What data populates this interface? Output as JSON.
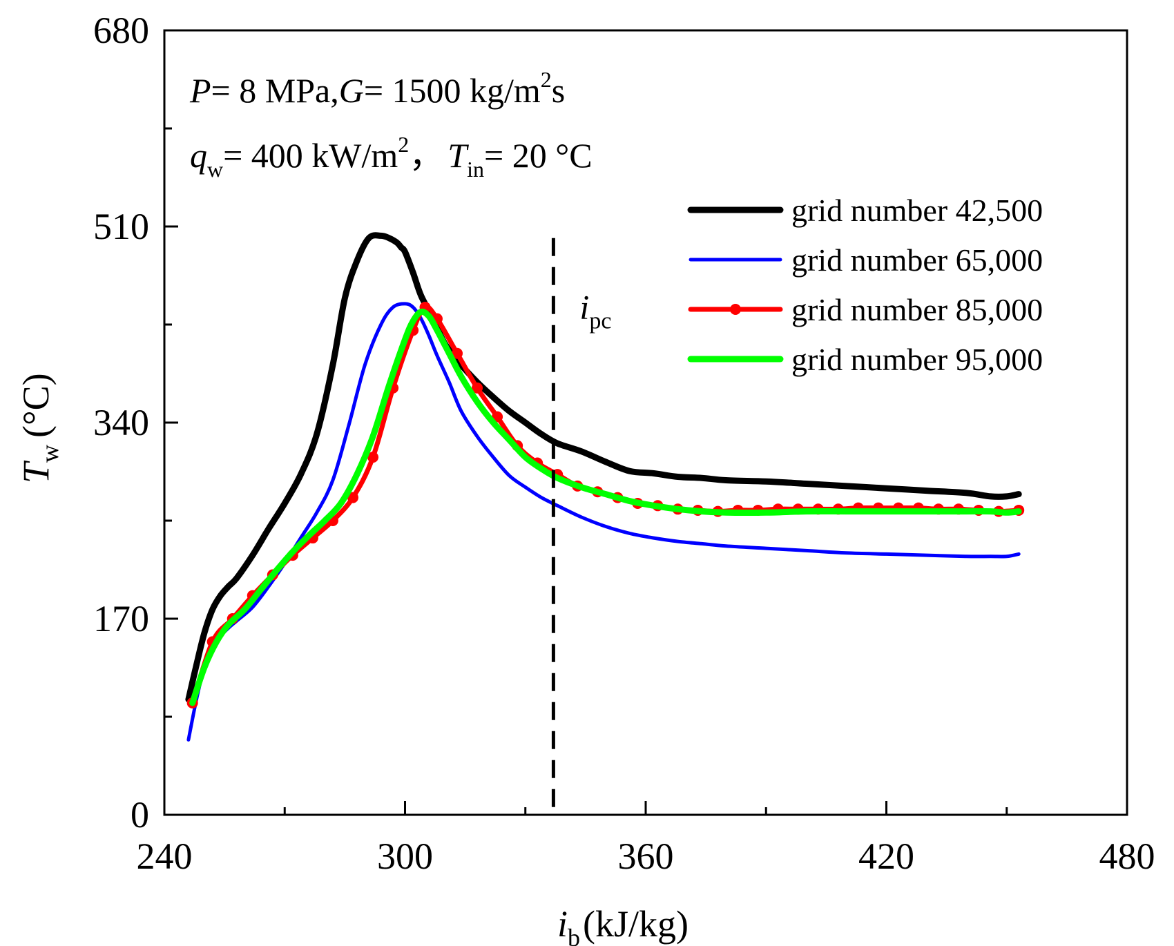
{
  "chart_data": {
    "type": "line",
    "xlabel": {
      "symbol": "i",
      "sub": "b",
      "unit": "(kJ/kg)"
    },
    "ylabel": {
      "symbol": "T",
      "sub": "w",
      "unit": "(°C)"
    },
    "xlim": [
      240,
      480
    ],
    "ylim": [
      0,
      680
    ],
    "xticks": [
      "240",
      "300",
      "360",
      "420",
      "480"
    ],
    "yticks": [
      "0",
      "170",
      "340",
      "510",
      "680"
    ],
    "xtick_values": [
      240,
      300,
      360,
      420,
      480
    ],
    "ytick_values": [
      0,
      170,
      340,
      510,
      680
    ],
    "grid": false,
    "annotations": {
      "line1": {
        "p": "P",
        "p_val": "= 8 MPa,",
        "g": "G",
        "g_val": "= 1500 kg/m",
        "g_sup": "2",
        "g_end": "s"
      },
      "line2": {
        "q": "q",
        "q_sub": "w",
        "q_val": "= 400 kW/m",
        "q_sup": "2",
        "sep": "，",
        "t": "T",
        "t_sub": "in",
        "t_val": "= 20 °C"
      },
      "ipc": {
        "symbol": "i",
        "sub": "pc",
        "x": 337
      }
    },
    "legend_position": "top-right",
    "series": [
      {
        "name": "grid number 42,500",
        "color": "#000000",
        "markers": false,
        "x": [
          246,
          248,
          250,
          252,
          254,
          256,
          258,
          262,
          266,
          270,
          274,
          278,
          282,
          285,
          288,
          291,
          294,
          296,
          298,
          299,
          300,
          302,
          304,
          307,
          310,
          314,
          318,
          322,
          326,
          330,
          334,
          338,
          344,
          350,
          356,
          362,
          368,
          374,
          380,
          390,
          400,
          410,
          420,
          430,
          440,
          446,
          450,
          453
        ],
        "y": [
          100,
          130,
          158,
          178,
          190,
          198,
          205,
          225,
          248,
          270,
          295,
          330,
          390,
          448,
          480,
          500,
          502,
          500,
          496,
          492,
          488,
          470,
          450,
          430,
          408,
          390,
          375,
          362,
          350,
          340,
          330,
          322,
          315,
          306,
          298,
          296,
          293,
          292,
          290,
          289,
          287,
          285,
          283,
          281,
          279,
          276,
          276,
          278
        ]
      },
      {
        "name": "grid number 65,000",
        "color": "#0000FF",
        "markers": false,
        "x": [
          246,
          248,
          250,
          252,
          254,
          256,
          258,
          262,
          266,
          270,
          274,
          278,
          282,
          286,
          290,
          294,
          297,
          300,
          302,
          304,
          306,
          308,
          311,
          314,
          318,
          322,
          326,
          330,
          334,
          338,
          344,
          350,
          356,
          362,
          368,
          374,
          380,
          390,
          400,
          410,
          420,
          430,
          440,
          446,
          450,
          453
        ],
        "y": [
          65,
          100,
          128,
          145,
          155,
          162,
          168,
          180,
          198,
          218,
          240,
          262,
          290,
          338,
          390,
          425,
          440,
          443,
          440,
          430,
          415,
          398,
          375,
          350,
          328,
          310,
          294,
          284,
          275,
          268,
          258,
          250,
          244,
          240,
          237,
          235,
          233,
          231,
          229,
          227,
          226,
          225,
          224,
          224,
          224,
          226
        ]
      },
      {
        "name": "grid number 85,000",
        "color": "#FF0000",
        "markers": true,
        "x": [
          247,
          252,
          257,
          262,
          267,
          272,
          277,
          282,
          287,
          292,
          297,
          302,
          305,
          308,
          313,
          318,
          323,
          328,
          333,
          338,
          343,
          348,
          353,
          358,
          363,
          368,
          373,
          378,
          383,
          388,
          393,
          398,
          403,
          408,
          413,
          418,
          423,
          428,
          433,
          438,
          443,
          448,
          453
        ],
        "y": [
          97,
          150,
          170,
          190,
          208,
          225,
          240,
          255,
          275,
          310,
          370,
          420,
          440,
          430,
          400,
          370,
          345,
          320,
          305,
          295,
          285,
          280,
          275,
          270,
          268,
          265,
          264,
          263,
          264,
          264,
          265,
          265,
          265,
          265,
          266,
          266,
          266,
          266,
          265,
          265,
          264,
          263,
          264
        ]
      },
      {
        "name": "grid number 95,000",
        "color": "#00FF00",
        "markers": false,
        "x": [
          247,
          250,
          253,
          256,
          260,
          264,
          268,
          272,
          276,
          280,
          284,
          288,
          292,
          296,
          300,
          302,
          304,
          306,
          308,
          311,
          314,
          318,
          322,
          326,
          330,
          334,
          338,
          344,
          350,
          356,
          362,
          368,
          374,
          380,
          390,
          400,
          410,
          420,
          430,
          440,
          446,
          450,
          453
        ],
        "y": [
          97,
          128,
          150,
          165,
          178,
          195,
          212,
          228,
          242,
          255,
          270,
          295,
          328,
          372,
          412,
          428,
          436,
          432,
          420,
          400,
          380,
          358,
          340,
          325,
          310,
          300,
          292,
          284,
          278,
          272,
          268,
          265,
          263,
          262,
          262,
          263,
          263,
          263,
          263,
          263,
          263,
          262,
          263
        ]
      }
    ]
  }
}
